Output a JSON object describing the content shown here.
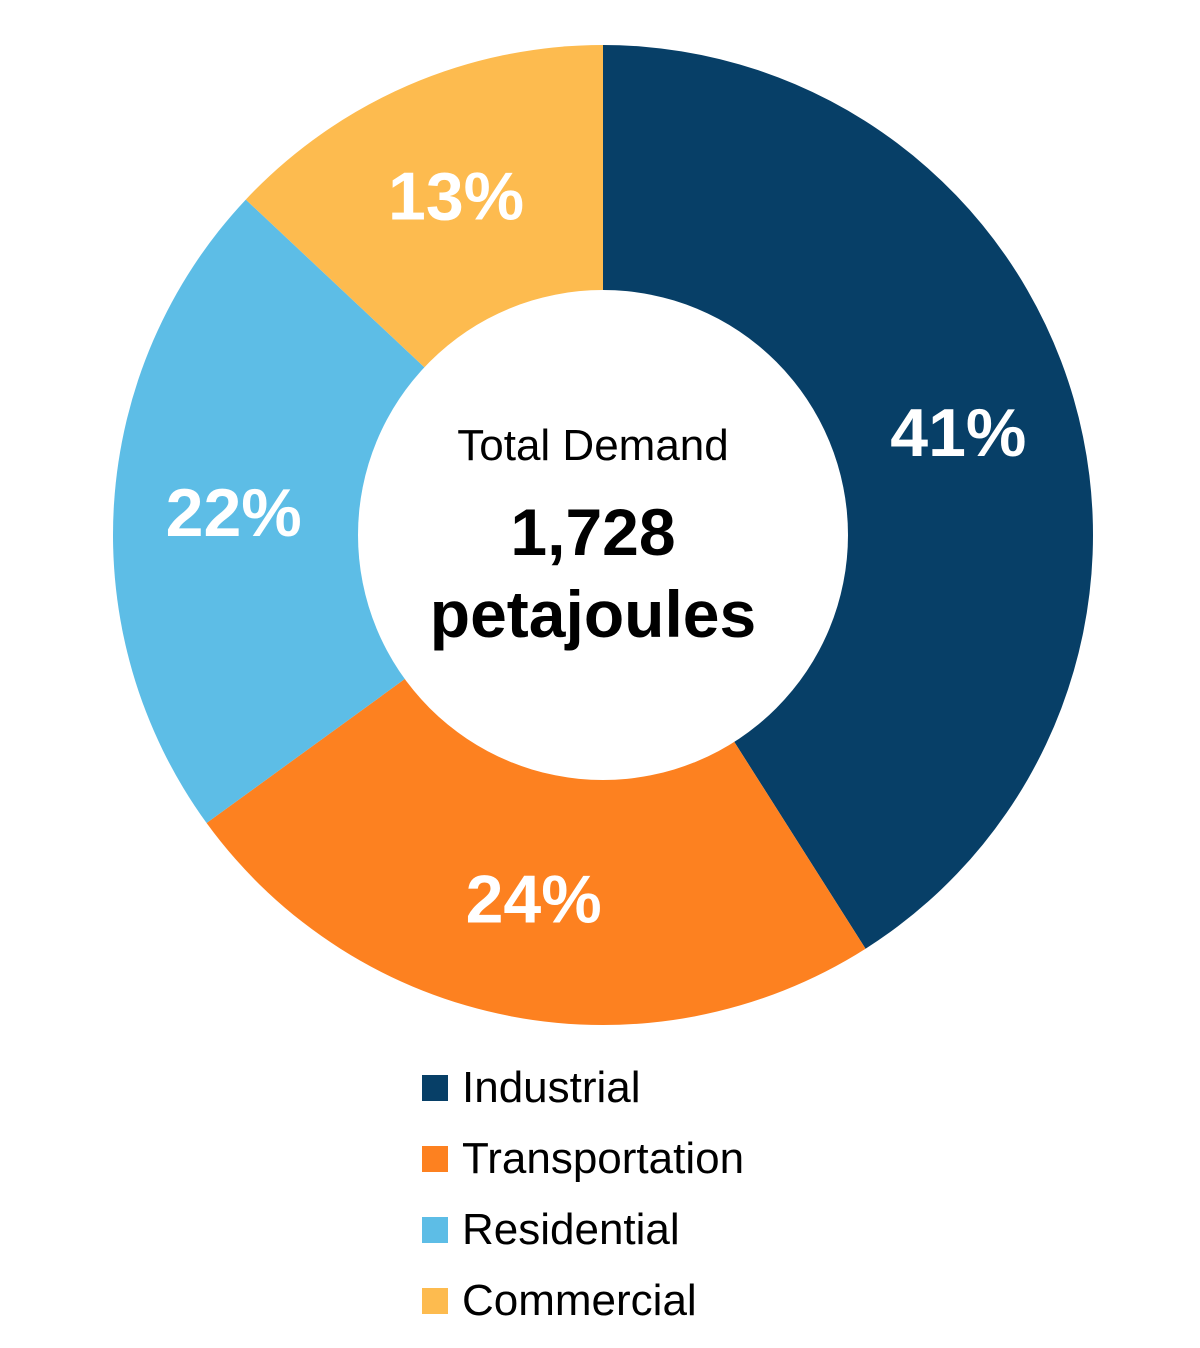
{
  "chart_data": {
    "type": "pie",
    "subtype": "donut",
    "title": "",
    "center_text": {
      "title": "Total Demand",
      "value_line1": "1,728",
      "value_line2": "petajoules"
    },
    "categories": [
      "Industrial",
      "Transportation",
      "Residential",
      "Commercial"
    ],
    "values": [
      41,
      24,
      22,
      13
    ],
    "labels": [
      "41%",
      "24%",
      "22%",
      "13%"
    ],
    "colors": [
      "#073F67",
      "#FD8120",
      "#5DBDE6",
      "#FDBB4F"
    ],
    "units": "percent of total demand",
    "total": 1728,
    "total_units": "petajoules",
    "legend_position": "bottom"
  },
  "legend": {
    "items": [
      {
        "label": "Industrial",
        "color": "#073F67"
      },
      {
        "label": "Transportation",
        "color": "#FD8120"
      },
      {
        "label": "Residential",
        "color": "#5DBDE6"
      },
      {
        "label": "Commercial",
        "color": "#FDBB4F"
      }
    ]
  }
}
